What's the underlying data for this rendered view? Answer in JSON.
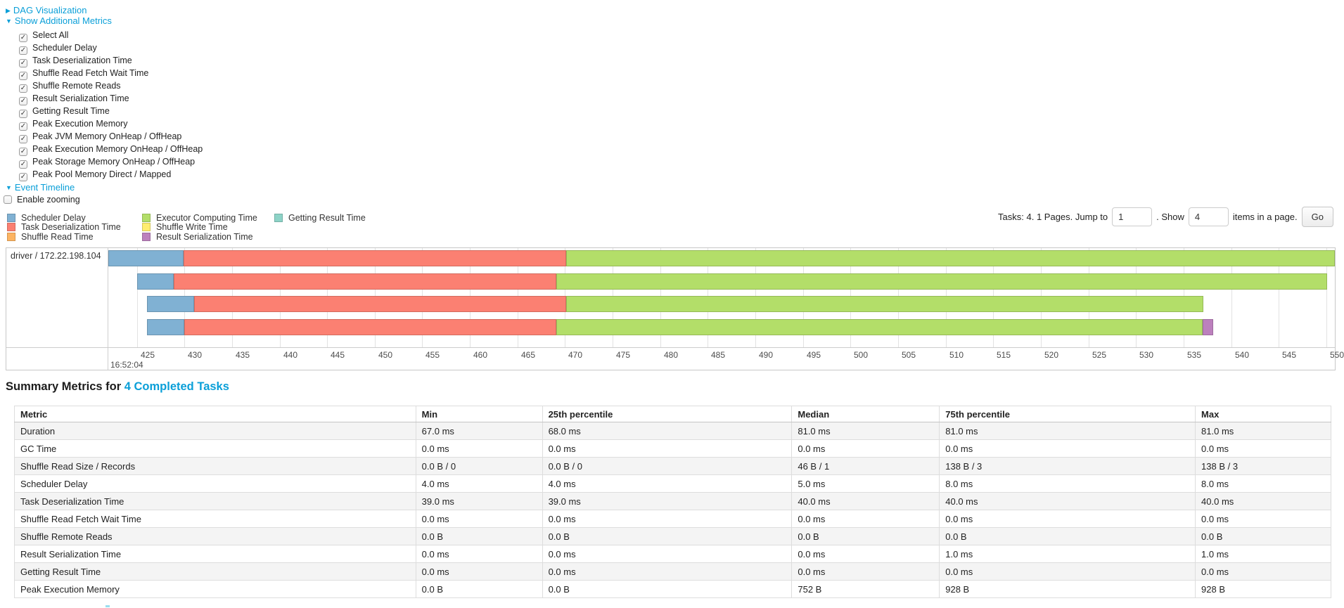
{
  "colors": {
    "link": "#0a9fd8"
  },
  "toggles": {
    "dag": {
      "label": "DAG Visualization",
      "arrow": "▶"
    },
    "metrics": {
      "label": "Show Additional Metrics",
      "arrow": "▼"
    },
    "timeline": {
      "label": "Event Timeline",
      "arrow": "▼"
    }
  },
  "metrics_checkboxes": [
    {
      "label": "Select All",
      "checked": true
    },
    {
      "label": "Scheduler Delay",
      "checked": true
    },
    {
      "label": "Task Deserialization Time",
      "checked": true
    },
    {
      "label": "Shuffle Read Fetch Wait Time",
      "checked": true
    },
    {
      "label": "Shuffle Remote Reads",
      "checked": true
    },
    {
      "label": "Result Serialization Time",
      "checked": true
    },
    {
      "label": "Getting Result Time",
      "checked": true
    },
    {
      "label": "Peak Execution Memory",
      "checked": true
    },
    {
      "label": "Peak JVM Memory OnHeap / OffHeap",
      "checked": true
    },
    {
      "label": "Peak Execution Memory OnHeap / OffHeap",
      "checked": true
    },
    {
      "label": "Peak Storage Memory OnHeap / OffHeap",
      "checked": true
    },
    {
      "label": "Peak Pool Memory Direct / Mapped",
      "checked": true
    }
  ],
  "enable_zooming": {
    "label": "Enable zooming",
    "checked": false
  },
  "pagination": {
    "prefix": "Tasks: 4. 1 Pages. Jump to",
    "jump_value": "1",
    "mid": ". Show",
    "show_value": "4",
    "suffix": "items in a page.",
    "go_label": "Go"
  },
  "chart_data": {
    "type": "timeline",
    "group_label": "driver / 172.22.198.104",
    "palette": {
      "scheduler_delay": {
        "fill": "#80B1D3",
        "stroke": "#6B94B0",
        "label": "Scheduler Delay"
      },
      "deserialization": {
        "fill": "#FB8072",
        "stroke": "#D26B5F",
        "label": "Task Deserialization Time"
      },
      "shuffle_read": {
        "fill": "#FDB462",
        "stroke": "#D39651",
        "label": "Shuffle Read Time"
      },
      "executor_computing": {
        "fill": "#B3DE69",
        "stroke": "#95B957",
        "label": "Executor Computing Time"
      },
      "shuffle_write": {
        "fill": "#FFED6F",
        "stroke": "#D5C65C",
        "label": "Shuffle Write Time"
      },
      "result_serialization": {
        "fill": "#BC80BD",
        "stroke": "#9D6B9E",
        "label": "Result Serialization Time"
      },
      "getting_result": {
        "fill": "#8DD3C7",
        "stroke": "#75B0A6",
        "label": "Getting Result Time"
      }
    },
    "legend_columns": [
      [
        "scheduler_delay",
        "deserialization",
        "shuffle_read"
      ],
      [
        "executor_computing",
        "shuffle_write",
        "result_serialization"
      ],
      [
        "getting_result"
      ]
    ],
    "axis": {
      "window_start": 422.0,
      "window_end": 550.9,
      "ticks": [
        425,
        430,
        435,
        440,
        445,
        450,
        455,
        460,
        465,
        470,
        475,
        480,
        485,
        490,
        495,
        500,
        505,
        510,
        515,
        520,
        525,
        530,
        535,
        540,
        545,
        550
      ],
      "major_label": "16:52:04"
    },
    "tasks": [
      {
        "segments": [
          {
            "type": "scheduler_delay",
            "start": 421.9,
            "end": 429.9
          },
          {
            "type": "deserialization",
            "start": 429.9,
            "end": 470.1
          },
          {
            "type": "executor_computing",
            "start": 470.1,
            "end": 551.5
          }
        ]
      },
      {
        "segments": [
          {
            "type": "scheduler_delay",
            "start": 425.0,
            "end": 428.9
          },
          {
            "type": "deserialization",
            "start": 428.9,
            "end": 469.1
          },
          {
            "type": "executor_computing",
            "start": 469.1,
            "end": 550.1
          }
        ]
      },
      {
        "segments": [
          {
            "type": "scheduler_delay",
            "start": 426.1,
            "end": 431.0
          },
          {
            "type": "deserialization",
            "start": 431.0,
            "end": 470.1
          },
          {
            "type": "executor_computing",
            "start": 470.1,
            "end": 537.1
          }
        ]
      },
      {
        "segments": [
          {
            "type": "scheduler_delay",
            "start": 426.1,
            "end": 430.0
          },
          {
            "type": "deserialization",
            "start": 430.0,
            "end": 469.1
          },
          {
            "type": "executor_computing",
            "start": 469.1,
            "end": 537.0
          },
          {
            "type": "result_serialization",
            "start": 537.0,
            "end": 538.1
          }
        ]
      }
    ]
  },
  "summary": {
    "title_prefix": "Summary Metrics for",
    "title_link": "4 Completed Tasks",
    "headers": [
      "Metric",
      "Min",
      "25th percentile",
      "Median",
      "75th percentile",
      "Max"
    ],
    "rows": [
      [
        "Duration",
        "67.0 ms",
        "68.0 ms",
        "81.0 ms",
        "81.0 ms",
        "81.0 ms"
      ],
      [
        "GC Time",
        "0.0 ms",
        "0.0 ms",
        "0.0 ms",
        "0.0 ms",
        "0.0 ms"
      ],
      [
        "Shuffle Read Size / Records",
        "0.0 B / 0",
        "0.0 B / 0",
        "46 B / 1",
        "138 B / 3",
        "138 B / 3"
      ],
      [
        "Scheduler Delay",
        "4.0 ms",
        "4.0 ms",
        "5.0 ms",
        "8.0 ms",
        "8.0 ms"
      ],
      [
        "Task Deserialization Time",
        "39.0 ms",
        "39.0 ms",
        "40.0 ms",
        "40.0 ms",
        "40.0 ms"
      ],
      [
        "Shuffle Read Fetch Wait Time",
        "0.0 ms",
        "0.0 ms",
        "0.0 ms",
        "0.0 ms",
        "0.0 ms"
      ],
      [
        "Shuffle Remote Reads",
        "0.0 B",
        "0.0 B",
        "0.0 B",
        "0.0 B",
        "0.0 B"
      ],
      [
        "Result Serialization Time",
        "0.0 ms",
        "0.0 ms",
        "0.0 ms",
        "1.0 ms",
        "1.0 ms"
      ],
      [
        "Getting Result Time",
        "0.0 ms",
        "0.0 ms",
        "0.0 ms",
        "0.0 ms",
        "0.0 ms"
      ],
      [
        "Peak Execution Memory",
        "0.0 B",
        "0.0 B",
        "752 B",
        "928 B",
        "928 B"
      ]
    ]
  }
}
